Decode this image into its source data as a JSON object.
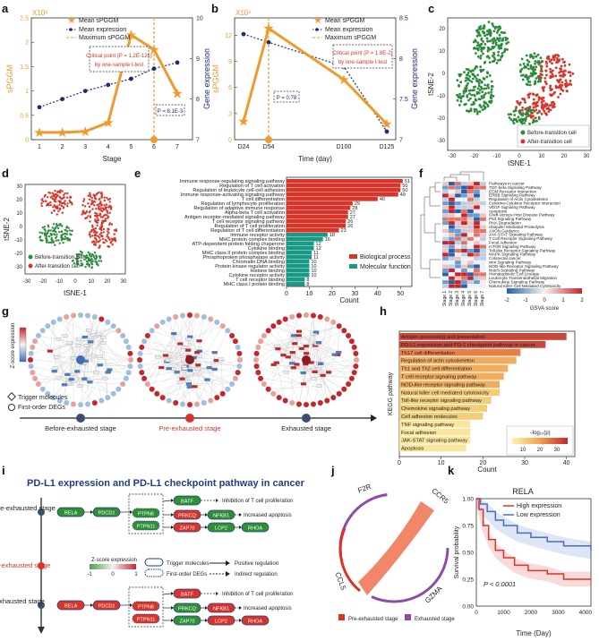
{
  "panel_letters": [
    "a",
    "b",
    "c",
    "d",
    "e",
    "f",
    "g",
    "h",
    "i",
    "j",
    "k"
  ],
  "panel_a": {
    "multiplier": "X10³",
    "legend": [
      "Mean sPGGM",
      "Mean expression",
      "Maximum sPGGM"
    ],
    "critical_line1": "Critical point (P = 1.2E-126)",
    "critical_line2": "by one-sample t-test",
    "pval": "P = 8.1E-3",
    "xlabel": "Stage",
    "ylabel_left": "sPGGM",
    "ylabel_right": "Gene expression",
    "xticks": [
      "1",
      "2",
      "3",
      "4",
      "5",
      "6",
      "7"
    ],
    "yticks_left": [
      "0",
      "0.5",
      "1",
      "1.5",
      "2",
      "2.5"
    ],
    "yticks_right": [
      "7",
      "8",
      "9",
      "10"
    ]
  },
  "panel_b": {
    "multiplier": "X10²",
    "legend": [
      "Mean sPGGM",
      "Mean expression",
      "Maximum sPGGM"
    ],
    "critical_line1": "Critical point (P = 1.8E-2)",
    "critical_line2": "by one-sample t-test",
    "pval": "P = 0.78",
    "xlabel": "Time (day)",
    "ylabel_left": "sPGGM",
    "ylabel_right": "Gene expression",
    "xticks": [
      "D24",
      "D54",
      "D100",
      "D125"
    ],
    "yticks_left": [
      "0",
      "3",
      "6",
      "9",
      "12"
    ],
    "yticks_right": [
      "7",
      "7.5",
      "8",
      "8.5"
    ]
  },
  "panel_c": {
    "xlabel": "tSNE-1",
    "ylabel": "tSNE-2",
    "xticks": [
      "-30",
      "-20",
      "-10",
      "0",
      "10",
      "20",
      "30"
    ],
    "yticks": [
      "-30",
      "-20",
      "-10",
      "0",
      "10",
      "20"
    ],
    "legend": [
      "Before-transition cell",
      "After-transition cell"
    ]
  },
  "panel_d": {
    "xlabel": "tSNE-1",
    "ylabel": "tSNE-2",
    "xticks": [
      "-30",
      "-20",
      "-10",
      "0",
      "10",
      "20",
      "30"
    ],
    "yticks": [
      "-30",
      "-20",
      "-10",
      "0",
      "10",
      "20",
      "30"
    ],
    "legend": [
      "Before-transition cell",
      "After-transition cell"
    ]
  },
  "panel_e": {
    "xlabel": "Count",
    "xticks": [
      "0",
      "10",
      "20",
      "30",
      "40",
      "50"
    ],
    "legend": [
      "Biological process",
      "Molecular function"
    ]
  },
  "panel_f": {
    "pathways": [
      "Pathways in cancer",
      "TGF-beta Signaling Pathway",
      "ECM-Receptor Interaction",
      "ERBB Signaling Pathway",
      "Regulation of Actin Cytoskeleton",
      "Cytokine-Cytokine Receptor Interaction",
      "VEGF Signaling Pathway",
      "Apoptosis",
      "Graft-Versus-Host Disease Pathway",
      "P53 Signaling Pathway",
      "RNA Degradation",
      "Ubiquitin Mediated Proteolysis",
      "AXON Guidance",
      "JAK-STAT Signaling Pathway",
      "T Cell Receptor Signaling Pathway",
      "Focal Adhesion",
      "mTOR Signaling Pathway",
      "Toll-like Receptor Signaling Pathway",
      "MAPK Signaling Pathway",
      "Colorectal cancer",
      "Wnt Signaling Pathway",
      "NOD-like Receptor Signaling Pathway",
      "Notch Signaling Pathway",
      "Hematopoietic Cell Lineage",
      "Leukocyte Transendothelial Migration",
      "Chemokine Signaling Pathway",
      "Natural Killer Cell Mediated Cytotoxicity"
    ],
    "stages": [
      "Stage 1",
      "Stage 2",
      "Stage 3",
      "Stage 4",
      "Stage 5",
      "Stage 6",
      "Stage 7"
    ],
    "scale_ticks": [
      "-2",
      "-1",
      "0",
      "1",
      "2"
    ],
    "scale_label": "GSVA score"
  },
  "panel_g": {
    "zscore_label": "Z-score expression",
    "legend": [
      "Trigger molecules",
      "First-order DEGs"
    ],
    "stages": [
      "Before-exhausted stage",
      "Pre-exhausted stage",
      "Exhausted stage"
    ]
  },
  "panel_h": {
    "ylabel": "KEGG pathway",
    "xlabel": "Count",
    "xticks": [
      "0",
      "10",
      "20",
      "30",
      "40"
    ],
    "legend_title": "−log₁₀(p)",
    "legend_ticks": [
      "10",
      "20",
      "30"
    ]
  },
  "panel_i": {
    "title": "PD-L1 expression and PD-L1 checkpoint pathway in cancer",
    "stages": [
      "Before-exhausted stage",
      "Pre-exhausted stage",
      "Exhausted stage"
    ],
    "zscore_label": "Z-score expression",
    "z_ticks": [
      "-1",
      "0",
      "1"
    ],
    "legend": [
      "Trigger molecules",
      "First-order DEGs",
      "Positive regulation",
      "Indirect regulation"
    ],
    "outcomes": [
      "Inhibition of T cell proliferation",
      "Increased apoptosis"
    ]
  },
  "panel_j": {
    "genes": [
      "F2R",
      "CCR5",
      "GZMA",
      "CCL5"
    ],
    "legend": [
      "Pre-exhausted stage",
      "Exhausted stage"
    ]
  },
  "panel_k": {
    "title": "RELA",
    "legend": [
      "High expression",
      "Low expression"
    ],
    "pval": "P < 0.0001",
    "xlabel": "Time (Day)",
    "ylabel": "Survival probability",
    "xticks": [
      "0",
      "1000",
      "2000",
      "3000",
      "4000"
    ],
    "yticks": [
      "0.00",
      "0.25",
      "0.50",
      "0.75",
      "1.00"
    ]
  },
  "chart_data": [
    {
      "type": "line",
      "x": [
        1,
        2,
        3,
        4,
        5,
        6,
        7
      ],
      "series": [
        {
          "name": "Mean sPGGM",
          "values": [
            0.15,
            0.15,
            0.17,
            0.35,
            2.15,
            1.85,
            0.95
          ]
        },
        {
          "name": "Mean expression",
          "values": [
            7.8,
            8.0,
            8.2,
            8.35,
            8.5,
            8.75,
            8.9
          ]
        }
      ],
      "xlabel": "Stage",
      "ylabel": "sPGGM",
      "ylim": [
        0,
        2.5
      ],
      "ylim_right": [
        7,
        10
      ]
    },
    {
      "type": "line",
      "x": [
        "D24",
        "D54",
        "D100",
        "D125"
      ],
      "series": [
        {
          "name": "Mean sPGGM",
          "values": [
            2.1,
            12.8,
            6.9,
            1.8
          ]
        },
        {
          "name": "Mean expression",
          "values": [
            8.3,
            8.2,
            7.9,
            7.1
          ]
        }
      ],
      "xlabel": "Time (day)",
      "ylabel": "sPGGM",
      "ylim": [
        0,
        14
      ],
      "ylim_right": [
        7,
        8.5
      ]
    },
    {
      "type": "bar",
      "categories": [
        "Immune response-regulating signaling pathway",
        "Regulation of T cell activation",
        "Regulation of leukocyte cell-cell adhesion",
        "Immune response-activating signaling pathway",
        "T cell differentiation",
        "Regulation of lymphocyte proliferation",
        "Regulation of adaptive immune response",
        "Alpha-beta T cell activation",
        "Antigen receptor-mediated signaling pathway",
        "T cell receptor signaling pathway",
        "Regulation of T cell proliferation",
        "Regulation of T cell differentiation",
        "Immune receptor activity",
        "MHC protein complex binding",
        "ATP-dependent protein folding chaperone",
        "Cytokine binding",
        "MHC class II protein complex binding",
        "Phosphoprotein phosphatase activity",
        "Chromatin DNA binding",
        "Protein kinase regulator activity",
        "Histone binding",
        "Cytokine receptor activity",
        "T cell receptor binding",
        "MHC class I protein binding"
      ],
      "values": [
        51,
        50,
        50,
        49,
        40,
        29,
        28,
        27,
        27,
        26,
        26,
        23,
        18,
        16,
        12,
        12,
        11,
        11,
        10,
        10,
        10,
        10,
        8,
        8
      ],
      "groups": [
        "Biological process",
        "Biological process",
        "Biological process",
        "Biological process",
        "Biological process",
        "Biological process",
        "Biological process",
        "Biological process",
        "Biological process",
        "Biological process",
        "Biological process",
        "Biological process",
        "Molecular function",
        "Molecular function",
        "Molecular function",
        "Molecular function",
        "Molecular function",
        "Molecular function",
        "Molecular function",
        "Molecular function",
        "Molecular function",
        "Molecular function",
        "Molecular function",
        "Molecular function"
      ],
      "xlabel": "Count",
      "xlim": [
        0,
        55
      ]
    },
    {
      "type": "bar",
      "categories": [
        "Antigen processing and presentation",
        "PD-L1 expression and PD-1 checkpoint pathway in cancer",
        "Th17 cell differentiation",
        "Regulation of actin cytoskeleton",
        "Th1 and Th2 cell differentiation",
        "T cell receptor signaling pathway",
        "NOD-like receptor signaling pathway",
        "Natural killer cell mediated cytotoxicity",
        "Toll-like receptor signaling pathway",
        "Chemokine signaling pathway",
        "Cell adhesion molecules",
        "TNF signaling pathway",
        "Focal adhesion",
        "JAK-STAT signaling pathway",
        "Apoptosis"
      ],
      "values": [
        40,
        35,
        29,
        28,
        26,
        25,
        24,
        24,
        22,
        21,
        20,
        17,
        17,
        17,
        16
      ],
      "neg_log10_p": [
        35,
        30,
        22,
        20,
        18,
        16,
        15,
        14,
        13,
        12,
        11,
        10,
        9,
        8,
        7
      ],
      "xlabel": "Count",
      "xlim": [
        0,
        42
      ]
    }
  ],
  "colors": {
    "orange": "#f19a2c",
    "navy": "#1e2a78",
    "green": "#2e8b3e",
    "red": "#d8352a",
    "teal": "#1a9a85",
    "purple": "#8e4ba8"
  }
}
